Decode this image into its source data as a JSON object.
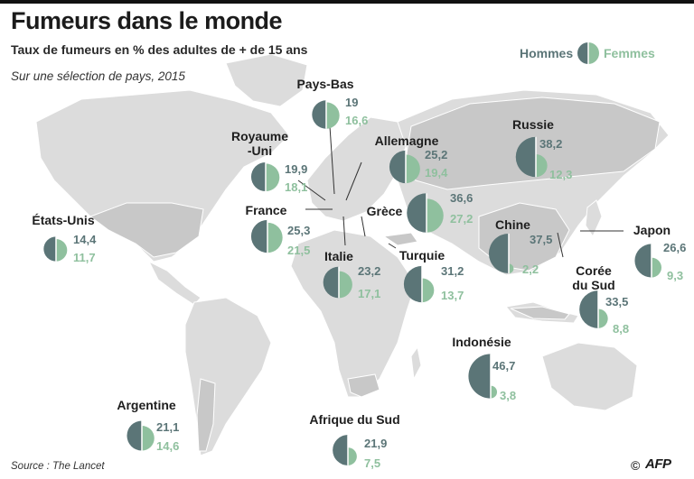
{
  "title": "Fumeurs dans le monde",
  "subtitle": "Taux de fumeurs en % des adultes de + de 15 ans",
  "note": "Sur une sélection de pays, 2015",
  "source": "Source : The Lancet",
  "copyright": "©",
  "logo": "AFP",
  "legend": {
    "men": "Hommes",
    "women": "Femmes"
  },
  "colors": {
    "men": "#5b7577",
    "women": "#8fc09e",
    "land": "#dcdcdc",
    "highlight": "#c8c8c8"
  },
  "countries": [
    {
      "id": "etats-unis",
      "name": "États-Unis",
      "men": "14,4",
      "women": "11,7",
      "men_value": 14.4,
      "women_value": 11.7
    },
    {
      "id": "royaume-uni",
      "name": "Royaume\n-Uni",
      "men": "19,9",
      "women": "18,1",
      "men_value": 19.9,
      "women_value": 18.1
    },
    {
      "id": "pays-bas",
      "name": "Pays-Bas",
      "men": "19",
      "women": "16,6",
      "men_value": 19.0,
      "women_value": 16.6
    },
    {
      "id": "allemagne",
      "name": "Allemagne",
      "men": "25,2",
      "women": "19,4",
      "men_value": 25.2,
      "women_value": 19.4
    },
    {
      "id": "france",
      "name": "France",
      "men": "25,3",
      "women": "21,5",
      "men_value": 25.3,
      "women_value": 21.5
    },
    {
      "id": "grece",
      "name": "Grèce",
      "men": "36,6",
      "women": "27,2",
      "men_value": 36.6,
      "women_value": 27.2
    },
    {
      "id": "italie",
      "name": "Italie",
      "men": "23,2",
      "women": "17,1",
      "men_value": 23.2,
      "women_value": 17.1
    },
    {
      "id": "turquie",
      "name": "Turquie",
      "men": "31,2",
      "women": "13,7",
      "men_value": 31.2,
      "women_value": 13.7
    },
    {
      "id": "russie",
      "name": "Russie",
      "men": "38,2",
      "women": "12,3",
      "men_value": 38.2,
      "women_value": 12.3
    },
    {
      "id": "chine",
      "name": "Chine",
      "men": "37,5",
      "women": "2,2",
      "men_value": 37.5,
      "women_value": 2.2
    },
    {
      "id": "japon",
      "name": "Japon",
      "men": "26,6",
      "women": "9,3",
      "men_value": 26.6,
      "women_value": 9.3
    },
    {
      "id": "coree-du-sud",
      "name": "Corée\ndu Sud",
      "men": "33,5",
      "women": "8,8",
      "men_value": 33.5,
      "women_value": 8.8
    },
    {
      "id": "indonesie",
      "name": "Indonésie",
      "men": "46,7",
      "women": "3,8",
      "men_value": 46.7,
      "women_value": 3.8
    },
    {
      "id": "argentine",
      "name": "Argentine",
      "men": "21,1",
      "women": "14,6",
      "men_value": 21.1,
      "women_value": 14.6
    },
    {
      "id": "afrique-du-sud",
      "name": "Afrique du Sud",
      "men": "21,9",
      "women": "7,5",
      "men_value": 21.9,
      "women_value": 7.5
    }
  ]
}
